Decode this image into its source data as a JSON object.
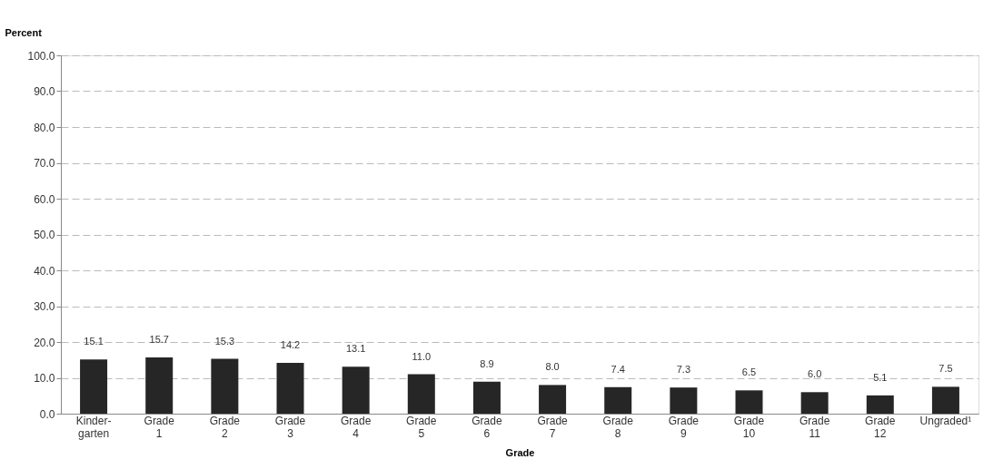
{
  "chart_data": {
    "type": "bar",
    "xlabel": "Grade",
    "ylabel": "Percent",
    "categories": [
      "Kinder-\ngarten",
      "Grade\n1",
      "Grade\n2",
      "Grade\n3",
      "Grade\n4",
      "Grade\n5",
      "Grade\n6",
      "Grade\n7",
      "Grade\n8",
      "Grade\n9",
      "Grade\n10",
      "Grade\n11",
      "Grade\n12",
      "Ungraded¹"
    ],
    "values": [
      15.1,
      15.7,
      15.3,
      14.2,
      13.1,
      11.0,
      8.9,
      8.0,
      7.4,
      7.3,
      6.5,
      6.0,
      5.1,
      7.5
    ],
    "value_labels": [
      "15.1",
      "15.7",
      "15.3",
      "14.2",
      "13.1",
      "11.0",
      "8.9",
      "8.0",
      "7.4",
      "7.3",
      "6.5",
      "6.0",
      "5.1",
      "7.5"
    ],
    "color": "#262626",
    "ylim": [
      0,
      100
    ],
    "yticks": [
      {
        "value": 0,
        "label": "0.0"
      },
      {
        "value": 10,
        "label": "10.0"
      },
      {
        "value": 20,
        "label": "20.0"
      },
      {
        "value": 30,
        "label": "30.0"
      },
      {
        "value": 40,
        "label": "40.0"
      },
      {
        "value": 50,
        "label": "50.0"
      },
      {
        "value": 60,
        "label": "60.0"
      },
      {
        "value": 70,
        "label": "70.0"
      },
      {
        "value": 80,
        "label": "80.0"
      },
      {
        "value": 90,
        "label": "90.0"
      },
      {
        "value": 100,
        "label": "100.0"
      }
    ],
    "grid": "y"
  }
}
